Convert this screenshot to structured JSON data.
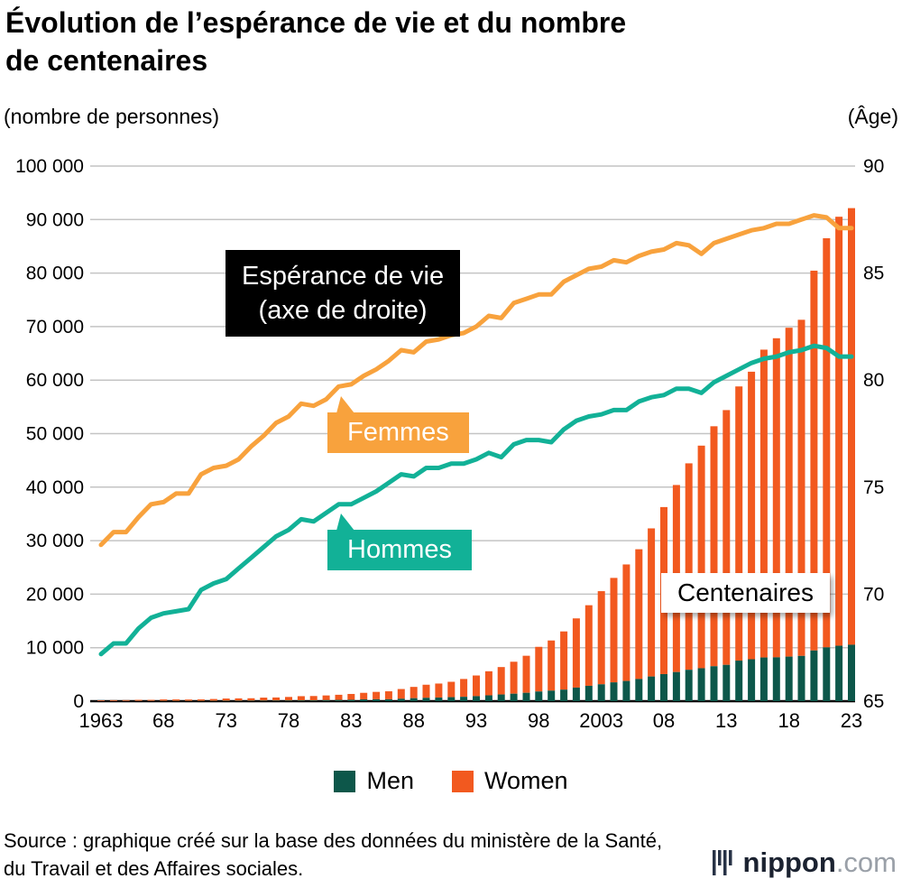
{
  "title": {
    "line1": "Évolution de l’espérance de vie et du nombre",
    "line2": "de centenaires"
  },
  "axis_units": {
    "left": "(nombre de personnes)",
    "right": "(Âge)"
  },
  "annotations": {
    "life_line1": "Espérance de vie",
    "life_line2": "(axe de droite)",
    "femmes": "Femmes",
    "hommes": "Hommes",
    "centenaires": "Centenaires"
  },
  "legend": {
    "men": "Men",
    "women": "Women"
  },
  "source": "Source : graphique créé sur la base des données du ministère de la Santé, du Travail et des Affaires sociales.",
  "logo": {
    "name": "nippon",
    "suffix": ".com"
  },
  "colors": {
    "line_femmes": "#f8a23d",
    "line_hommes": "#12b197",
    "bar_men": "#0d574a",
    "bar_women": "#f2591f",
    "grid": "#c4c4c4",
    "axis": "#000000",
    "annotation_black_bg": "#000000"
  },
  "chart_data": {
    "type": "bar+line",
    "title": "Évolution de l’espérance de vie et du nombre de centenaires",
    "ylabel_left": "(nombre de personnes)",
    "ylabel_right": "(Âge)",
    "grid": true,
    "legend_position": "bottom",
    "years": [
      1963,
      1964,
      1965,
      1966,
      1967,
      1968,
      1969,
      1970,
      1971,
      1972,
      1973,
      1974,
      1975,
      1976,
      1977,
      1978,
      1979,
      1980,
      1981,
      1982,
      1983,
      1984,
      1985,
      1986,
      1987,
      1988,
      1989,
      1990,
      1991,
      1992,
      1993,
      1994,
      1995,
      1996,
      1997,
      1998,
      1999,
      2000,
      2001,
      2002,
      2003,
      2004,
      2005,
      2006,
      2007,
      2008,
      2009,
      2010,
      2011,
      2012,
      2013,
      2014,
      2015,
      2016,
      2017,
      2018,
      2019,
      2020,
      2021,
      2022,
      2023
    ],
    "bar_series": [
      {
        "name": "Men",
        "axis": "left",
        "values": [
          20,
          25,
          36,
          46,
          46,
          67,
          70,
          62,
          70,
          78,
          91,
          96,
          102,
          113,
          122,
          132,
          152,
          154,
          202,
          233,
          269,
          347,
          359,
          361,
          462,
          562,
          630,
          680,
          749,
          822,
          943,
          1093,
          1255,
          1400,
          1570,
          1812,
          1973,
          2158,
          2541,
          2875,
          3159,
          3523,
          3779,
          4150,
          4613,
          5063,
          5447,
          5869,
          6162,
          6534,
          6791,
          7586,
          7840,
          8167,
          8197,
          8331,
          8463,
          9475,
          10060,
          10365,
          10550
        ]
      },
      {
        "name": "Women",
        "axis": "left",
        "values": [
          133,
          166,
          162,
          206,
          207,
          260,
          261,
          248,
          269,
          327,
          404,
          431,
          446,
          553,
          575,
          660,
          785,
          814,
          870,
          967,
          1085,
          1216,
          1381,
          1490,
          1809,
          2106,
          2448,
          2618,
          2876,
          3330,
          3859,
          4500,
          5123,
          5973,
          6921,
          8346,
          9373,
          10878,
          12934,
          15059,
          17402,
          19515,
          21775,
          24245,
          27682,
          31213,
          34952,
          38580,
          41594,
          44842,
          47606,
          51234,
          53728,
          57525,
          59627,
          61454,
          62811,
          70975,
          76450,
          80161,
          81589
        ]
      }
    ],
    "line_series": [
      {
        "name": "Hommes (espérance de vie)",
        "axis": "right",
        "values": [
          67.2,
          67.7,
          67.7,
          68.4,
          68.9,
          69.1,
          69.2,
          69.3,
          70.2,
          70.5,
          70.7,
          71.2,
          71.7,
          72.2,
          72.7,
          73.0,
          73.5,
          73.4,
          73.8,
          74.2,
          74.2,
          74.5,
          74.8,
          75.2,
          75.6,
          75.5,
          75.9,
          75.9,
          76.1,
          76.1,
          76.3,
          76.6,
          76.4,
          77.0,
          77.2,
          77.2,
          77.1,
          77.7,
          78.1,
          78.3,
          78.4,
          78.6,
          78.6,
          79.0,
          79.2,
          79.3,
          79.6,
          79.6,
          79.4,
          79.9,
          80.2,
          80.5,
          80.8,
          81.0,
          81.1,
          81.3,
          81.4,
          81.6,
          81.5,
          81.1,
          81.1
        ]
      },
      {
        "name": "Femmes (espérance de vie)",
        "axis": "right",
        "values": [
          72.3,
          72.9,
          72.9,
          73.6,
          74.2,
          74.3,
          74.7,
          74.7,
          75.6,
          75.9,
          76.0,
          76.3,
          76.9,
          77.4,
          78.0,
          78.3,
          78.9,
          78.8,
          79.1,
          79.7,
          79.8,
          80.2,
          80.5,
          80.9,
          81.4,
          81.3,
          81.8,
          81.9,
          82.1,
          82.2,
          82.5,
          83.0,
          82.9,
          83.6,
          83.8,
          84.0,
          84.0,
          84.6,
          84.9,
          85.2,
          85.3,
          85.6,
          85.5,
          85.8,
          86.0,
          86.1,
          86.4,
          86.3,
          85.9,
          86.4,
          86.6,
          86.8,
          87.0,
          87.1,
          87.3,
          87.3,
          87.5,
          87.7,
          87.6,
          87.1,
          87.1
        ]
      }
    ],
    "left_axis": {
      "min": 0,
      "max": 100000,
      "tick_step": 10000,
      "ticks": [
        {
          "value": 0,
          "label": "0"
        },
        {
          "value": 10000,
          "label": "10 000"
        },
        {
          "value": 20000,
          "label": "20 000"
        },
        {
          "value": 30000,
          "label": "30 000"
        },
        {
          "value": 40000,
          "label": "40 000"
        },
        {
          "value": 50000,
          "label": "50 000"
        },
        {
          "value": 60000,
          "label": "60 000"
        },
        {
          "value": 70000,
          "label": "70 000"
        },
        {
          "value": 80000,
          "label": "80 000"
        },
        {
          "value": 90000,
          "label": "90 000"
        },
        {
          "value": 100000,
          "label": "100 000"
        }
      ]
    },
    "right_axis": {
      "min": 65,
      "max": 90,
      "ticks": [
        {
          "value": 65,
          "label": "65"
        },
        {
          "value": 70,
          "label": "70"
        },
        {
          "value": 75,
          "label": "75"
        },
        {
          "value": 80,
          "label": "80"
        },
        {
          "value": 85,
          "label": "85"
        },
        {
          "value": 90,
          "label": "90"
        }
      ]
    },
    "x_ticks": [
      {
        "index": 0,
        "label": "1963"
      },
      {
        "index": 5,
        "label": "68"
      },
      {
        "index": 10,
        "label": "73"
      },
      {
        "index": 15,
        "label": "78"
      },
      {
        "index": 20,
        "label": "83"
      },
      {
        "index": 25,
        "label": "88"
      },
      {
        "index": 30,
        "label": "93"
      },
      {
        "index": 35,
        "label": "98"
      },
      {
        "index": 40,
        "label": "2003"
      },
      {
        "index": 45,
        "label": "08"
      },
      {
        "index": 50,
        "label": "13"
      },
      {
        "index": 55,
        "label": "18"
      },
      {
        "index": 60,
        "label": "23"
      }
    ]
  }
}
